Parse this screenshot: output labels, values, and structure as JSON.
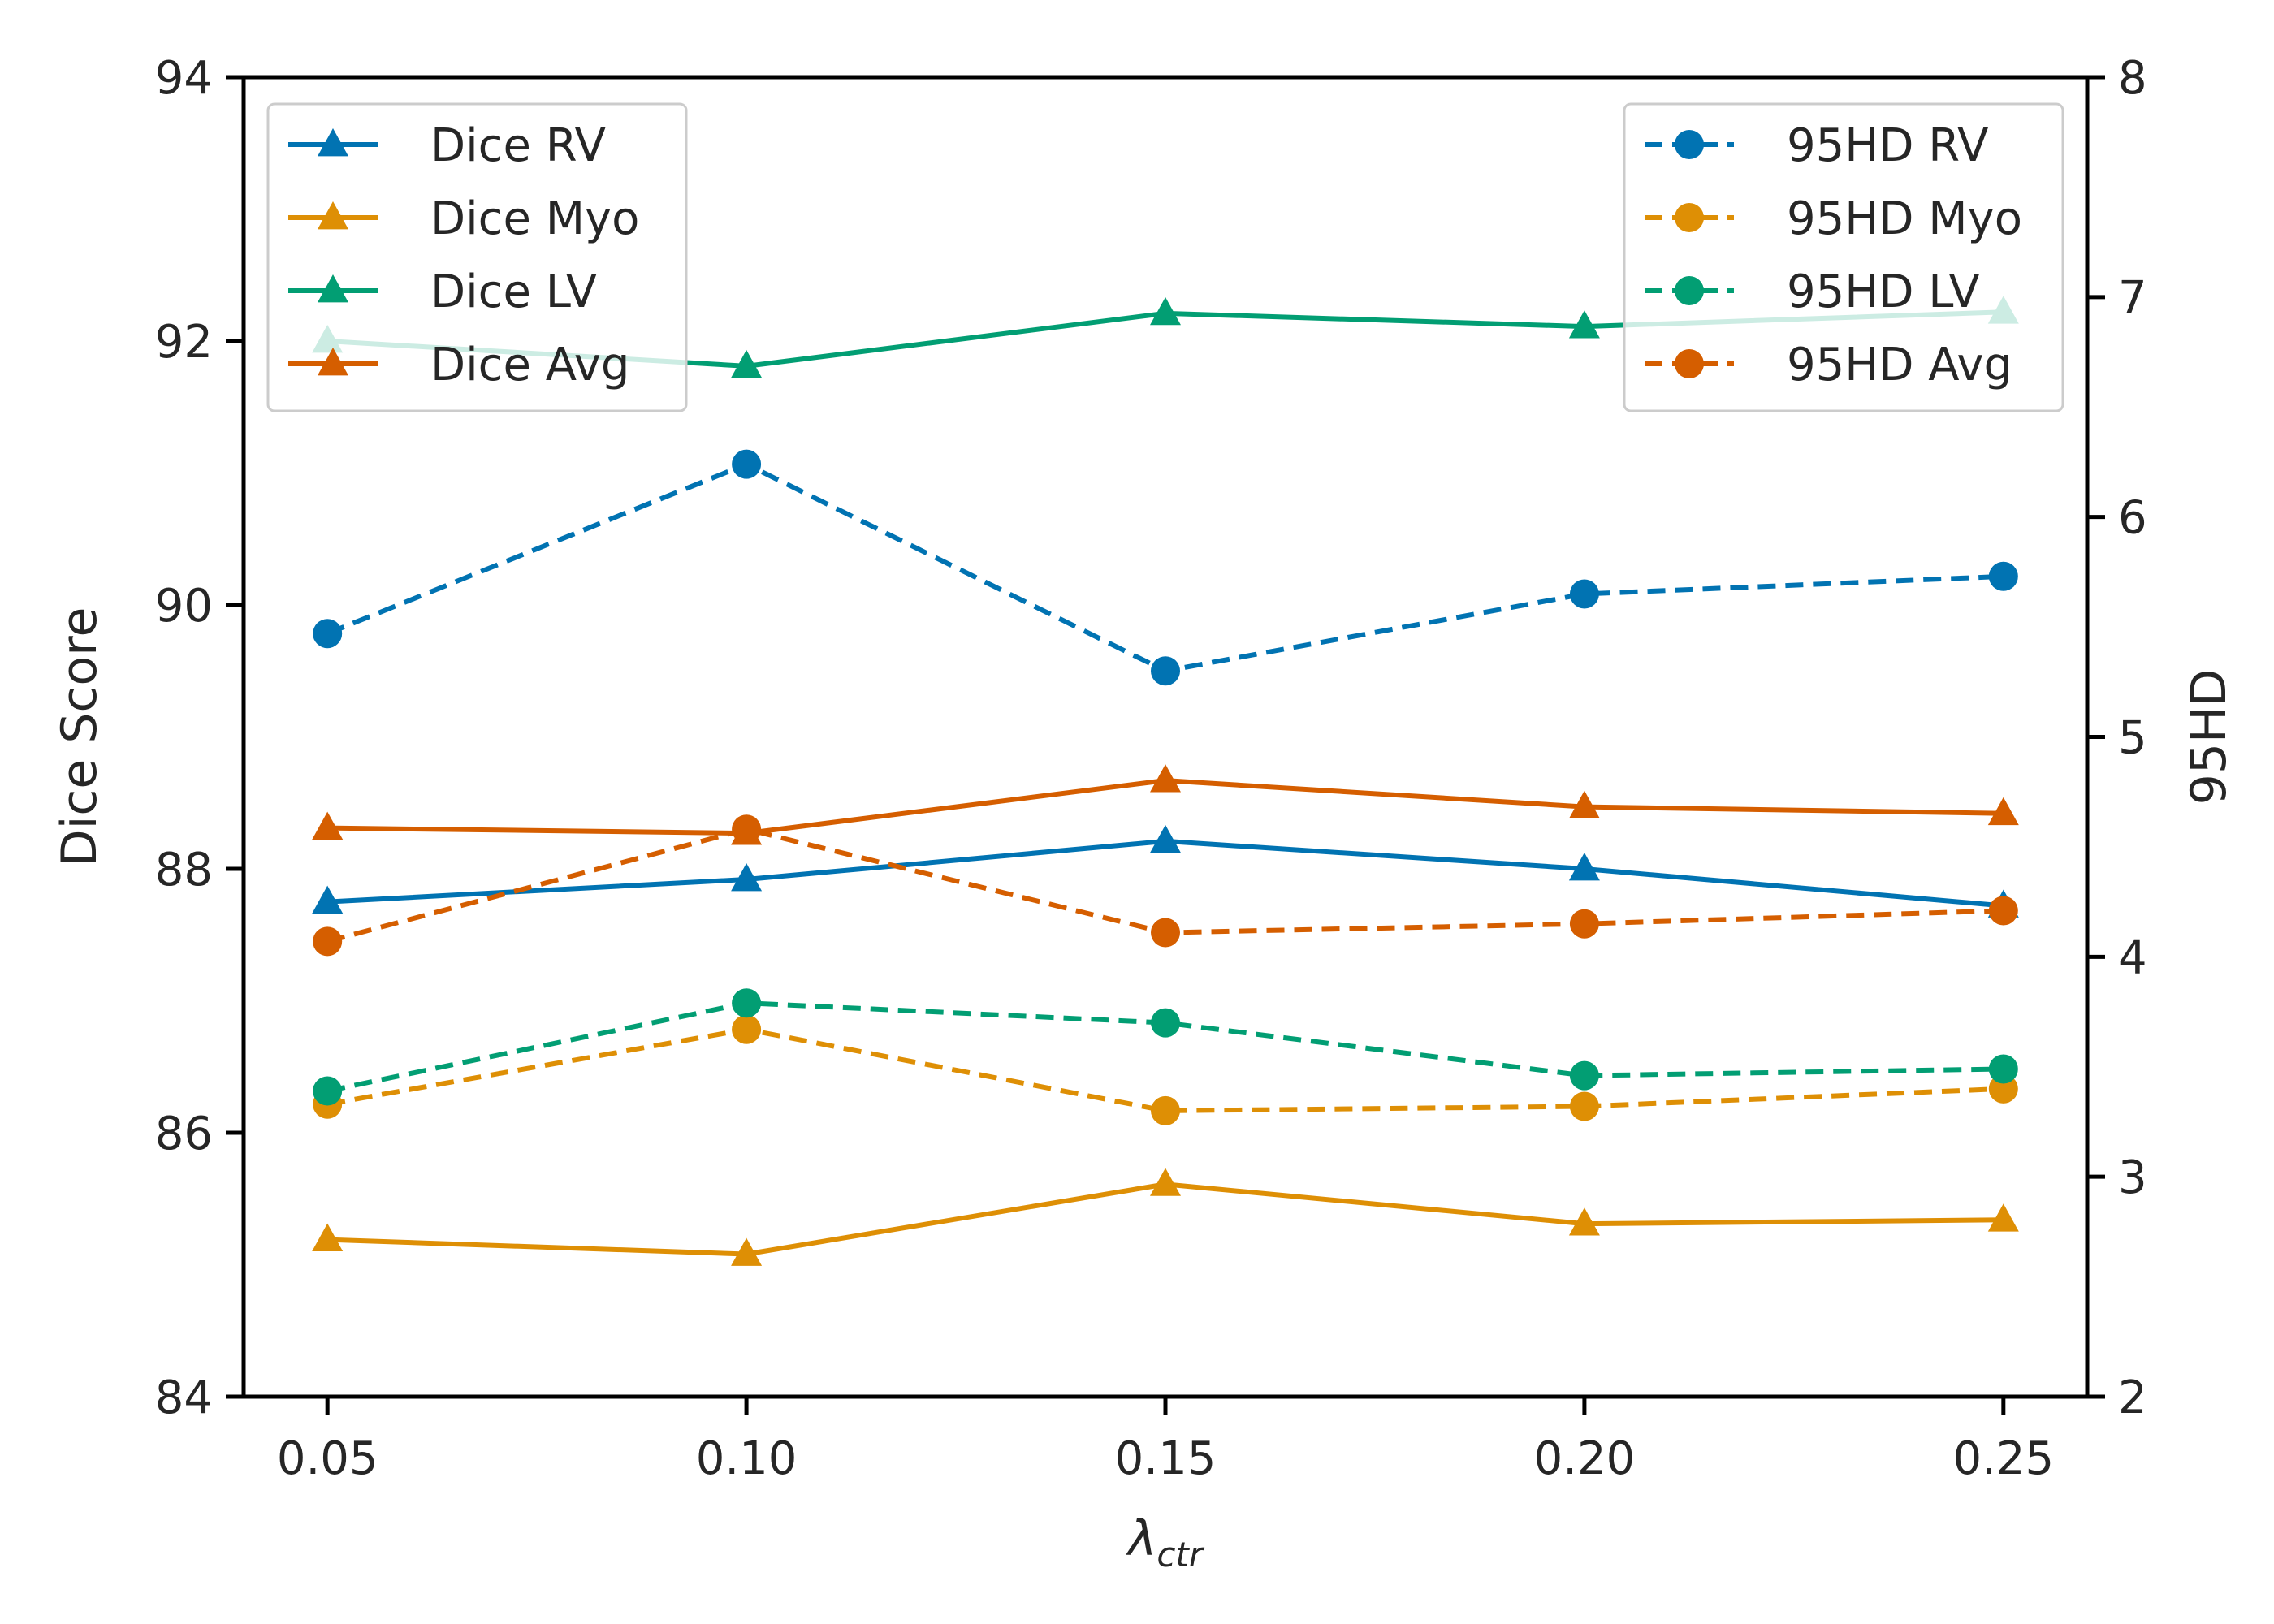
{
  "chart_data": {
    "type": "line",
    "x": [
      0.05,
      0.1,
      0.15,
      0.2,
      0.25
    ],
    "x_tick_labels": [
      "0.05",
      "0.10",
      "0.15",
      "0.20",
      "0.25"
    ],
    "xlabel": "λ",
    "xlabel_subscript": "ctr",
    "xlim": [
      0.04,
      0.26
    ],
    "left_axis": {
      "ylabel": "Dice Score",
      "ylim": [
        84,
        94
      ],
      "ticks": [
        84,
        86,
        88,
        90,
        92,
        94
      ],
      "tick_labels": [
        "84",
        "86",
        "88",
        "90",
        "92",
        "94"
      ]
    },
    "right_axis": {
      "ylabel": "95HD",
      "ylim": [
        2,
        8
      ],
      "ticks": [
        2,
        3,
        4,
        5,
        6,
        7,
        8
      ],
      "tick_labels": [
        "2",
        "3",
        "4",
        "5",
        "6",
        "7",
        "8"
      ]
    },
    "series": [
      {
        "name": "Dice RV",
        "axis": "left",
        "color": "#0173b2",
        "marker": "triangle",
        "dash": "solid",
        "values": [
          87.75,
          87.92,
          88.21,
          88.0,
          87.72
        ]
      },
      {
        "name": "Dice Myo",
        "axis": "left",
        "color": "#de8f05",
        "marker": "triangle",
        "dash": "solid",
        "values": [
          85.19,
          85.08,
          85.61,
          85.31,
          85.34
        ]
      },
      {
        "name": "Dice LV",
        "axis": "left",
        "color": "#029e73",
        "marker": "triangle",
        "dash": "solid",
        "values": [
          92.0,
          91.81,
          92.21,
          92.11,
          92.22
        ]
      },
      {
        "name": "Dice Avg",
        "axis": "left",
        "color": "#d55e00",
        "marker": "triangle",
        "dash": "solid",
        "values": [
          88.31,
          88.27,
          88.67,
          88.47,
          88.42
        ]
      },
      {
        "name": "95HD RV",
        "axis": "right",
        "color": "#0173b2",
        "marker": "circle",
        "dash": "dashed",
        "values": [
          5.47,
          6.24,
          5.3,
          5.65,
          5.73
        ]
      },
      {
        "name": "95HD Myo",
        "axis": "right",
        "color": "#de8f05",
        "marker": "circle",
        "dash": "dashed",
        "values": [
          3.33,
          3.67,
          3.3,
          3.32,
          3.4
        ]
      },
      {
        "name": "95HD LV",
        "axis": "right",
        "color": "#029e73",
        "marker": "circle",
        "dash": "dashed",
        "values": [
          3.39,
          3.79,
          3.7,
          3.46,
          3.49
        ]
      },
      {
        "name": "95HD Avg",
        "axis": "right",
        "color": "#d55e00",
        "marker": "circle",
        "dash": "dashed",
        "values": [
          4.07,
          4.58,
          4.11,
          4.15,
          4.21
        ]
      }
    ],
    "legends": [
      {
        "placement": "top-left",
        "entries": [
          "Dice RV",
          "Dice Myo",
          "Dice LV",
          "Dice Avg"
        ]
      },
      {
        "placement": "top-right",
        "entries": [
          "95HD RV",
          "95HD Myo",
          "95HD LV",
          "95HD Avg"
        ]
      }
    ]
  }
}
